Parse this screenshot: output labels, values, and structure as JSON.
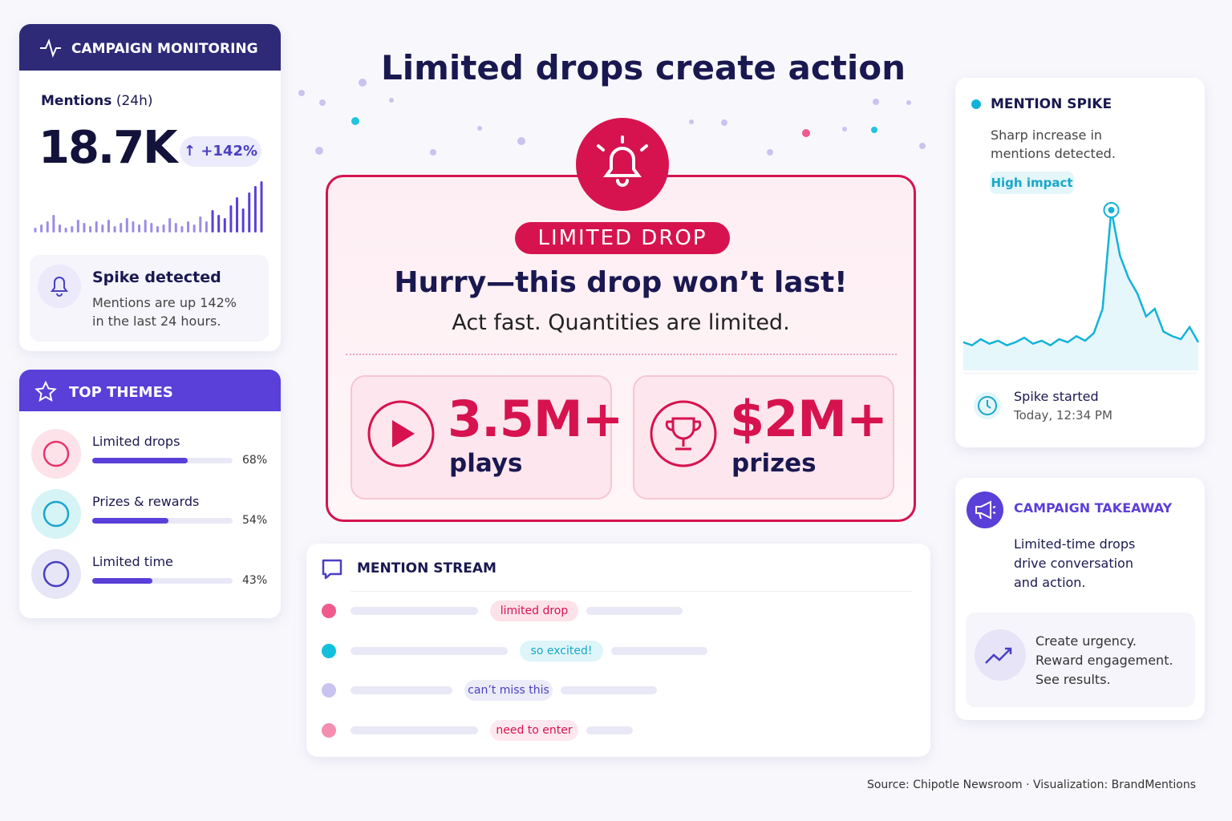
{
  "header": {
    "title": "Limited drops create action"
  },
  "monitoring": {
    "title": "CAMPAIGN MONITORING",
    "metric_label": "Mentions",
    "metric_period": "(24h)",
    "metric_value": "18.7K",
    "change": "+142%",
    "sparkline": [
      6,
      10,
      14,
      22,
      10,
      6,
      8,
      16,
      12,
      8,
      14,
      10,
      16,
      8,
      12,
      18,
      14,
      10,
      16,
      12,
      8,
      10,
      18,
      12,
      8,
      14,
      10,
      20,
      14,
      28,
      22,
      18,
      34,
      44,
      30,
      50,
      58,
      64
    ],
    "alert": {
      "title": "Spike detected",
      "text_1": "Mentions are up 142%",
      "text_2": "in the last 24 hours."
    }
  },
  "themes": {
    "title": "TOP THEMES",
    "items": [
      {
        "label": "Limited drops",
        "share": {
          "value": 68,
          "label": "68%"
        }
      },
      {
        "label": "Prizes & rewards",
        "share": {
          "value": 54,
          "label": "54%"
        }
      },
      {
        "label": "Limited time",
        "share": {
          "value": 43,
          "label": "43%"
        }
      }
    ]
  },
  "drop": {
    "badge": "LIMITED DROP",
    "headline": "Hurry—this drop won’t last!",
    "subhead": "Act fast. Quantities are limited.",
    "stats": [
      {
        "value": "3.5M+",
        "label": "plays"
      },
      {
        "value": "$2M+",
        "label": "prizes"
      }
    ]
  },
  "stream": {
    "title": "MENTION STREAM",
    "items": [
      "limited drop",
      "so excited!",
      "can’t miss this",
      "need to enter"
    ]
  },
  "spike": {
    "title": "MENTION SPIKE",
    "text_1": "Sharp increase in",
    "text_2": "mentions detected.",
    "tag": "High impact",
    "line": [
      8,
      6,
      10,
      7,
      9,
      6,
      8,
      11,
      7,
      9,
      6,
      10,
      8,
      12,
      9,
      14,
      30,
      95,
      65,
      50,
      40,
      25,
      30,
      15,
      12,
      10,
      18,
      8
    ],
    "started_label": "Spike started",
    "started_time": "Today, 12:34 PM"
  },
  "takeaway": {
    "title": "CAMPAIGN TAKEAWAY",
    "text": [
      "Limited-time drops",
      "drive conversation",
      "and action."
    ],
    "tips": [
      "Create urgency.",
      "Reward engagement.",
      "See results."
    ]
  },
  "footer": {
    "source": "Source: Chipotle Newsroom · Visualization: BrandMentions"
  }
}
